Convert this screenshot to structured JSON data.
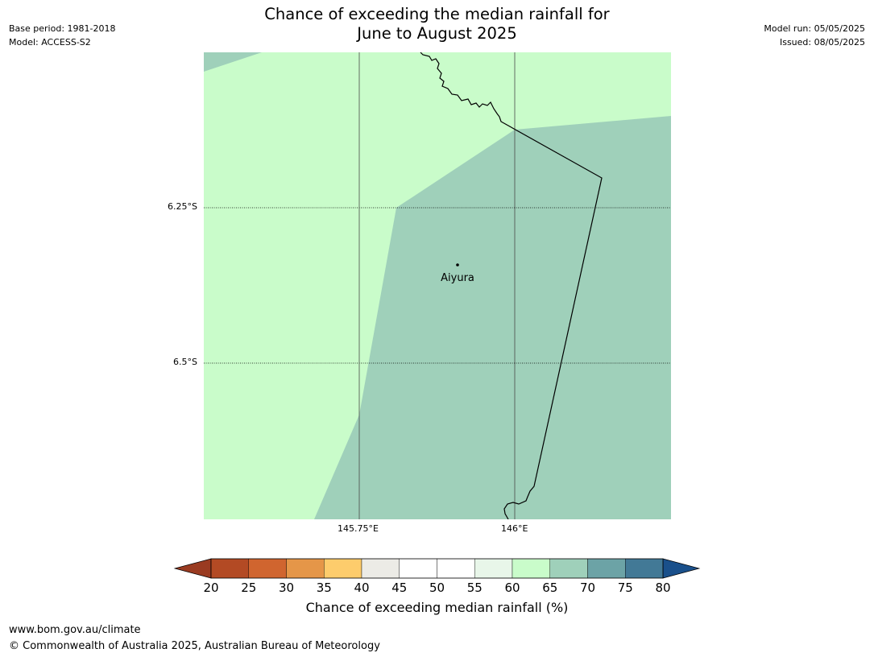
{
  "header": {
    "title_line1": "Chance of exceeding the median rainfall for",
    "title_line2": "June to August 2025",
    "base_period": "Base period: 1981-2018",
    "model": "Model: ACCESS-S2",
    "model_run": "Model run: 05/05/2025",
    "issued": "Issued: 08/05/2025"
  },
  "map": {
    "lat_labels": [
      "6.25°S",
      "6.5°S"
    ],
    "lon_labels": [
      "145.75°E",
      "146°E"
    ],
    "place": {
      "name": "Aiyura"
    },
    "colors": {
      "band_60_65": "#c9fcca",
      "band_65_70": "#9fd0ba",
      "border": "#000000"
    }
  },
  "colorbar": {
    "ticks": [
      "20",
      "25",
      "30",
      "35",
      "40",
      "45",
      "50",
      "55",
      "60",
      "65",
      "70",
      "75",
      "80"
    ],
    "colors": [
      "#b34a24",
      "#d0652f",
      "#e59648",
      "#fdcc6c",
      "#ecebe6",
      "#ffffff",
      "#ffffff",
      "#e8f6e9",
      "#c9fcca",
      "#9fd0ba",
      "#6ca3a6",
      "#427996"
    ],
    "under_color": "#9a3b21",
    "over_color": "#1a508b",
    "label": "Chance of exceeding median rainfall (%)"
  },
  "footer": {
    "url": "www.bom.gov.au/climate",
    "copyright": "© Commonwealth of Australia 2025, Australian Bureau of Meteorology"
  }
}
